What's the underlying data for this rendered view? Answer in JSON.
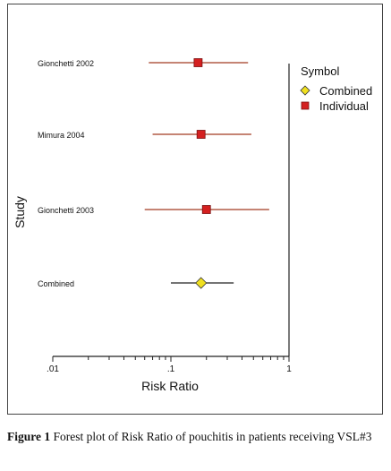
{
  "chart_data": {
    "type": "forest",
    "xlabel": "Risk Ratio",
    "ylabel": "Study",
    "x_scale": "log",
    "xlim": [
      0.01,
      1
    ],
    "x_ticks": [
      ".01",
      ".1",
      "1"
    ],
    "grid": false,
    "legend": {
      "title": "Symbol",
      "position": "top-right",
      "entries": [
        {
          "name": "Combined",
          "marker": "diamond",
          "color": "#f0e020"
        },
        {
          "name": "Individual",
          "marker": "square",
          "color": "#d42020"
        }
      ]
    },
    "studies": [
      {
        "label": "Gionchetti 2002",
        "estimate": 0.17,
        "lower": 0.065,
        "upper": 0.45,
        "marker": "square"
      },
      {
        "label": "Mimura 2004",
        "estimate": 0.18,
        "lower": 0.07,
        "upper": 0.48,
        "marker": "square"
      },
      {
        "label": "Gionchetti 2003",
        "estimate": 0.2,
        "lower": 0.06,
        "upper": 0.68,
        "marker": "square"
      },
      {
        "label": "Combined",
        "estimate": 0.18,
        "lower": 0.1,
        "upper": 0.34,
        "marker": "diamond"
      }
    ],
    "ci_color": "#a23a22"
  },
  "caption": {
    "label": "Figure 1",
    "text": " Forest plot of Risk Ratio of pouchitis in patients receiving VSL#3"
  }
}
